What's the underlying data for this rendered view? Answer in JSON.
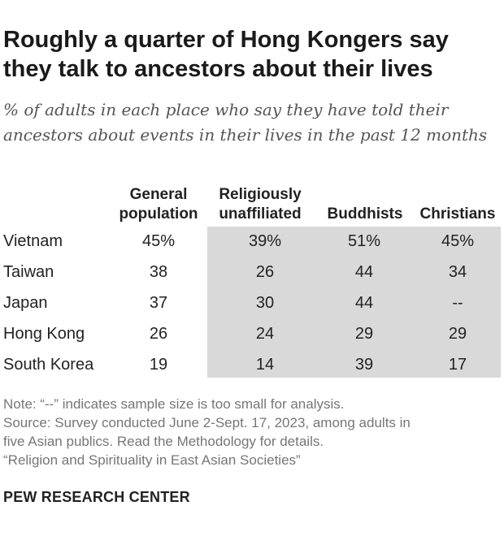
{
  "title": "Roughly a quarter of Hong Kongers say they talk to ancestors about their lives",
  "subtitle": "% of adults in each place who say they have told their ancestors about events in their lives in the past 12 months",
  "chart_data": {
    "type": "table",
    "columns": [
      {
        "line1": "General",
        "line2": "population"
      },
      {
        "line1": "Religiously",
        "line2": "unaffiliated"
      },
      {
        "line1": "",
        "line2": "Buddhists"
      },
      {
        "line1": "",
        "line2": "Christians"
      }
    ],
    "rows": [
      {
        "label": "Vietnam",
        "values": [
          "45%",
          "39%",
          "51%",
          "45%"
        ]
      },
      {
        "label": "Taiwan",
        "values": [
          "38",
          "26",
          "44",
          "34"
        ]
      },
      {
        "label": "Japan",
        "values": [
          "37",
          "30",
          "44",
          "--"
        ]
      },
      {
        "label": "Hong Kong",
        "values": [
          "26",
          "24",
          "29",
          "29"
        ]
      },
      {
        "label": "South Korea",
        "values": [
          "19",
          "14",
          "39",
          "17"
        ]
      }
    ],
    "shaded_columns": [
      1,
      2,
      3
    ]
  },
  "notes": {
    "note": "Note: “--” indicates sample size is too small for analysis.",
    "source_line1": "Source: Survey conducted June 2-Sept. 17, 2023, among adults in",
    "source_line2": "five Asian publics. Read the Methodology for details.",
    "report": "“Religion and Spirituality in East Asian Societies”"
  },
  "brand": "PEW RESEARCH CENTER",
  "colors": {
    "shade": "#d9d9d9",
    "text": "#222222",
    "muted": "#767676"
  }
}
